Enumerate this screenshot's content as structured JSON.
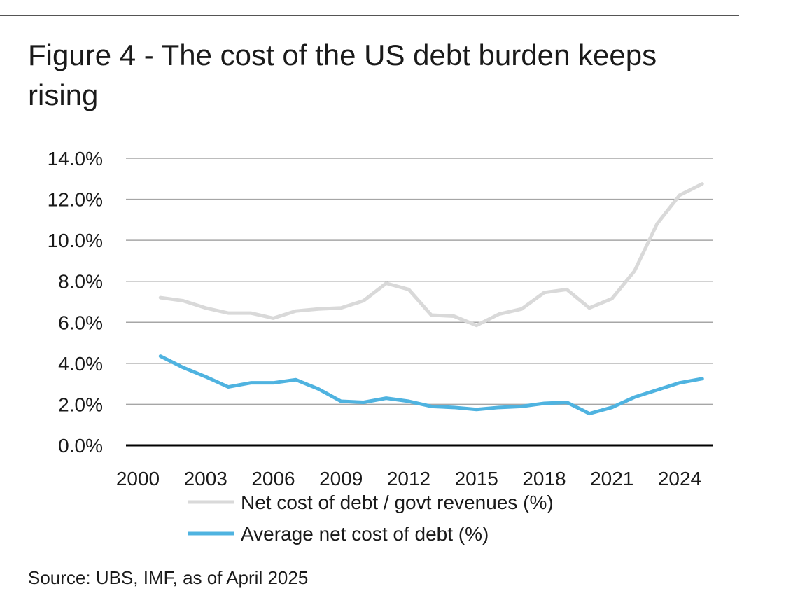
{
  "title": "Figure 4 - The cost of the US debt burden keeps rising",
  "source": "Source: UBS, IMF, as of April 2025",
  "chart_data": {
    "type": "line",
    "title": "Figure 4 - The cost of the US debt burden keeps rising",
    "xlabel": "",
    "ylabel": "",
    "ylim": [
      0,
      14
    ],
    "yticks": [
      "0.0%",
      "2.0%",
      "4.0%",
      "6.0%",
      "8.0%",
      "10.0%",
      "12.0%",
      "14.0%"
    ],
    "xticks": [
      "2000",
      "2003",
      "2006",
      "2009",
      "2012",
      "2015",
      "2018",
      "2021",
      "2024"
    ],
    "xlim": [
      2000,
      2025
    ],
    "grid": true,
    "legend": "bottom",
    "x": [
      2001,
      2002,
      2003,
      2004,
      2005,
      2006,
      2007,
      2008,
      2009,
      2010,
      2011,
      2012,
      2013,
      2014,
      2015,
      2016,
      2017,
      2018,
      2019,
      2020,
      2021,
      2022,
      2023,
      2024,
      2025
    ],
    "series": [
      {
        "name": "Net cost of debt / govt revenues (%)",
        "color": "#d9d9d9",
        "values": [
          7.2,
          7.05,
          6.7,
          6.45,
          6.45,
          6.2,
          6.55,
          6.65,
          6.7,
          7.05,
          7.9,
          7.6,
          6.35,
          6.3,
          5.85,
          6.4,
          6.65,
          7.45,
          7.6,
          6.7,
          7.15,
          8.5,
          10.8,
          12.2,
          12.75
        ]
      },
      {
        "name": "Average net cost of debt (%)",
        "color": "#4fb3e0",
        "values": [
          4.35,
          3.8,
          3.35,
          2.85,
          3.05,
          3.05,
          3.2,
          2.75,
          2.15,
          2.1,
          2.3,
          2.15,
          1.9,
          1.85,
          1.75,
          1.85,
          1.9,
          2.05,
          2.1,
          1.55,
          1.85,
          2.35,
          2.7,
          3.05,
          3.25
        ]
      }
    ]
  }
}
